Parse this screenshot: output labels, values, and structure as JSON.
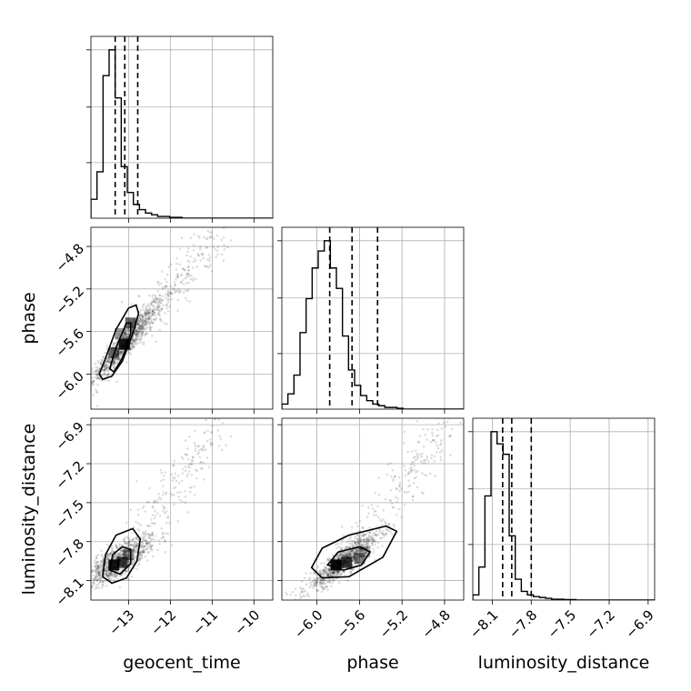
{
  "chart_data": {
    "type": "corner",
    "title": "",
    "parameters": [
      "geocent_time",
      "phase",
      "luminosity_distance"
    ],
    "ranges": {
      "geocent_time": [
        -13.9,
        -9.55
      ],
      "phase": [
        -6.33,
        -4.62
      ],
      "luminosity_distance": [
        -8.25,
        -6.85
      ]
    },
    "ticks": {
      "geocent_time": [
        -13,
        -12,
        -11,
        -10
      ],
      "phase": [
        -6.0,
        -5.6,
        -5.2,
        -4.8
      ],
      "luminosity_distance": [
        -8.1,
        -7.8,
        -7.5,
        -7.2,
        -6.9
      ]
    },
    "tick_labels": {
      "geocent_time": [
        "−13",
        "−12",
        "−11",
        "−10"
      ],
      "phase": [
        "−6.0",
        "−5.6",
        "−5.2",
        "−4.8"
      ],
      "luminosity_distance": [
        "−8.1",
        "−7.8",
        "−7.5",
        "−7.2",
        "−6.9"
      ]
    },
    "histograms": {
      "geocent_time": {
        "bin_start": -13.9,
        "bin_width": 0.1451,
        "counts": [
          0.11,
          0.27,
          0.83,
          0.98,
          0.7,
          0.3,
          0.15,
          0.08,
          0.05,
          0.03,
          0.02,
          0.01,
          0.01,
          0.005,
          0.005,
          0,
          0,
          0,
          0,
          0,
          0,
          0,
          0,
          0,
          0,
          0,
          0,
          0,
          0,
          0
        ],
        "quantiles": [
          -13.32,
          -13.09,
          -12.78
        ]
      },
      "phase": {
        "bin_start": -6.33,
        "bin_width": 0.057,
        "counts": [
          0.03,
          0.09,
          0.2,
          0.45,
          0.65,
          0.83,
          0.93,
          0.99,
          0.83,
          0.71,
          0.43,
          0.23,
          0.14,
          0.08,
          0.05,
          0.03,
          0.02,
          0.01,
          0.01,
          0.005,
          0,
          0,
          0,
          0,
          0,
          0,
          0,
          0,
          0,
          0
        ],
        "quantiles": [
          -5.88,
          -5.67,
          -5.43
        ]
      },
      "luminosity_distance": {
        "bin_start": -8.25,
        "bin_width": 0.0467,
        "counts": [
          0.03,
          0.19,
          0.6,
          0.97,
          0.9,
          0.84,
          0.37,
          0.12,
          0.05,
          0.03,
          0.02,
          0.015,
          0.01,
          0.005,
          0.005,
          0.003,
          0.003,
          0,
          0,
          0,
          0,
          0,
          0,
          0,
          0,
          0,
          0,
          0,
          0,
          0
        ],
        "quantiles": [
          -8.02,
          -7.95,
          -7.8
        ]
      }
    },
    "scatter_2d": [
      {
        "x": "geocent_time",
        "y": "phase",
        "center": [
          -13.05,
          -5.7
        ],
        "slope": 0.44,
        "spread": [
          0.45,
          0.07
        ],
        "tail_to": [
          -10.9,
          -4.7
        ],
        "contours": [
          [
            [
              -13.7,
              -6.0
            ],
            [
              -13.55,
              -5.85
            ],
            [
              -13.3,
              -5.58
            ],
            [
              -13.0,
              -5.38
            ],
            [
              -12.82,
              -5.35
            ],
            [
              -12.76,
              -5.43
            ],
            [
              -12.9,
              -5.62
            ],
            [
              -13.15,
              -5.88
            ],
            [
              -13.4,
              -6.02
            ],
            [
              -13.62,
              -6.05
            ]
          ],
          [
            [
              -13.45,
              -5.95
            ],
            [
              -13.3,
              -5.75
            ],
            [
              -13.05,
              -5.52
            ],
            [
              -12.95,
              -5.52
            ],
            [
              -12.95,
              -5.62
            ],
            [
              -13.15,
              -5.85
            ],
            [
              -13.35,
              -5.98
            ]
          ]
        ],
        "density_cells": [
          [
            -13.35,
            -5.8,
            0.55
          ],
          [
            -13.1,
            -5.72,
            0.9
          ],
          [
            -12.95,
            -5.52,
            0.6
          ],
          [
            -13.2,
            -5.62,
            0.4
          ]
        ]
      },
      {
        "x": "geocent_time",
        "y": "luminosity_distance",
        "center": [
          -13.25,
          -7.95
        ],
        "slope": 0.18,
        "spread": [
          0.45,
          0.06
        ],
        "tail_to": [
          -10.9,
          -6.95
        ],
        "contours": [
          [
            [
              -13.62,
              -8.07
            ],
            [
              -13.55,
              -7.9
            ],
            [
              -13.3,
              -7.75
            ],
            [
              -12.9,
              -7.7
            ],
            [
              -12.72,
              -7.78
            ],
            [
              -12.8,
              -7.95
            ],
            [
              -13.05,
              -8.08
            ],
            [
              -13.4,
              -8.12
            ]
          ],
          [
            [
              -13.45,
              -8.02
            ],
            [
              -13.38,
              -7.9
            ],
            [
              -13.15,
              -7.84
            ],
            [
              -12.95,
              -7.86
            ],
            [
              -12.95,
              -7.97
            ],
            [
              -13.2,
              -8.05
            ]
          ]
        ],
        "density_cells": [
          [
            -13.35,
            -7.98,
            0.9
          ],
          [
            -13.15,
            -7.96,
            0.7
          ],
          [
            -13.0,
            -7.9,
            0.35
          ]
        ]
      },
      {
        "x": "phase",
        "y": "luminosity_distance",
        "center": [
          -5.75,
          -7.95
        ],
        "slope": 0.6,
        "spread": [
          0.18,
          0.05
        ],
        "tail_to": [
          -4.8,
          -6.9
        ],
        "contours": [
          [
            [
              -6.05,
              -8.0
            ],
            [
              -5.95,
              -7.85
            ],
            [
              -5.7,
              -7.75
            ],
            [
              -5.35,
              -7.68
            ],
            [
              -5.25,
              -7.72
            ],
            [
              -5.38,
              -7.92
            ],
            [
              -5.7,
              -8.07
            ],
            [
              -5.95,
              -8.08
            ]
          ],
          [
            [
              -5.9,
              -7.98
            ],
            [
              -5.8,
              -7.88
            ],
            [
              -5.6,
              -7.84
            ],
            [
              -5.5,
              -7.88
            ],
            [
              -5.58,
              -7.98
            ],
            [
              -5.75,
              -8.02
            ]
          ]
        ],
        "density_cells": [
          [
            -5.82,
            -7.98,
            0.95
          ],
          [
            -5.72,
            -7.96,
            0.75
          ],
          [
            -5.6,
            -7.93,
            0.5
          ],
          [
            -5.55,
            -7.88,
            0.3
          ]
        ]
      }
    ],
    "grid": true
  }
}
